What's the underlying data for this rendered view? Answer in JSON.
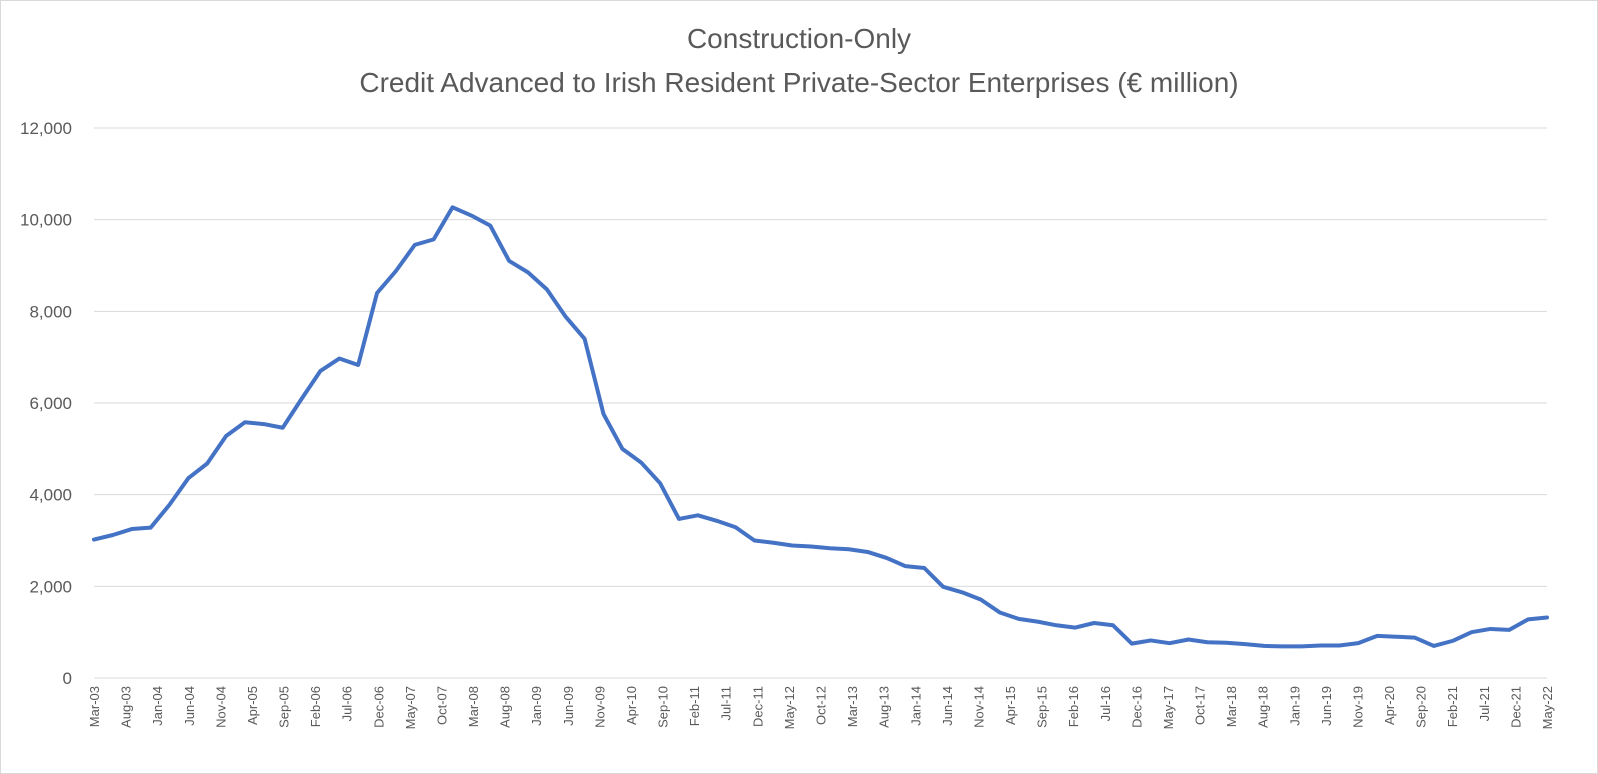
{
  "chart_data": {
    "type": "line",
    "title": "Construction-Only",
    "subtitle": "Credit Advanced to Irish Resident Private-Sector Enterprises (€ million)",
    "xlabel": "",
    "ylabel": "",
    "ylim": [
      0,
      12000
    ],
    "y_ticks": [
      "0",
      "2,000",
      "4,000",
      "6,000",
      "8,000",
      "10,000",
      "12,000"
    ],
    "y_tick_values": [
      0,
      2000,
      4000,
      6000,
      8000,
      10000,
      12000
    ],
    "grid": true,
    "legend": "none",
    "x_tick_labels": [
      "Mar-03",
      "Aug-03",
      "Jan-04",
      "Jun-04",
      "Nov-04",
      "Apr-05",
      "Sep-05",
      "Feb-06",
      "Jul-06",
      "Dec-06",
      "May-07",
      "Oct-07",
      "Mar-08",
      "Aug-08",
      "Jan-09",
      "Jun-09",
      "Nov-09",
      "Apr-10",
      "Sep-10",
      "Feb-11",
      "Jul-11",
      "Dec-11",
      "May-12",
      "Oct-12",
      "Mar-13",
      "Aug-13",
      "Jan-14",
      "Jun-14",
      "Nov-14",
      "Apr-15",
      "Sep-15",
      "Feb-16",
      "Jul-16",
      "Dec-16",
      "May-17",
      "Oct-17",
      "Mar-18",
      "Aug-18",
      "Jan-19",
      "Jun-19",
      "Nov-19",
      "Apr-20",
      "Sep-20",
      "Feb-21",
      "Jul-21",
      "Dec-21",
      "May-22"
    ],
    "series": [
      {
        "values": [
          3020,
          3120,
          3250,
          3280,
          3780,
          4360,
          4680,
          5280,
          5580,
          5540,
          5460,
          6090,
          6700,
          6970,
          6830,
          8400,
          8880,
          9450,
          9570,
          10270,
          10090,
          9870,
          9100,
          8850,
          8480,
          7880,
          7400,
          5760,
          5000,
          4700,
          4250,
          3470,
          3550,
          3430,
          3290,
          3000,
          2950,
          2890,
          2870,
          2830,
          2810,
          2750,
          2620,
          2440,
          2400,
          1990,
          1870,
          1710,
          1430,
          1290,
          1230,
          1150,
          1100,
          1200,
          1150,
          750,
          820,
          760,
          840,
          780,
          770,
          740,
          700,
          690,
          690,
          710,
          710,
          760,
          920,
          900,
          880,
          700,
          810,
          1000,
          1070,
          1050,
          1280,
          1320
        ]
      }
    ],
    "colors": {
      "line": "#4472c4",
      "grid": "#d9d9d9",
      "text": "#595959"
    }
  }
}
